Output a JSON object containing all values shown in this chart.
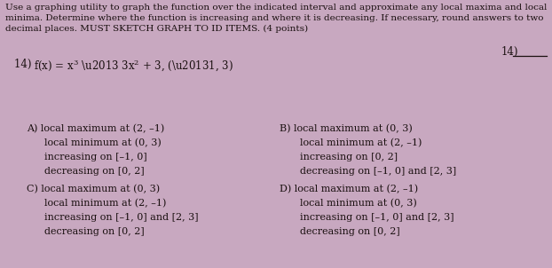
{
  "bg_color": "#c8a8c0",
  "header_text": "Use a graphing utility to graph the function over the indicated interval and approximate any local maxima and local\nminima. Determine where the function is increasing and where it is decreasing. If necessary, round answers to two\ndecimal places. MUST SKETCH GRAPH TO ID ITEMS. (4 points)",
  "question_num_left": "14) ",
  "function_text": "f(x) = x³ – 3x² + 3, (–1, 3)",
  "question_label_right": "14)",
  "answer_A_title": "A) local maximum at (2, –1)",
  "answer_A_line2": "local minimum at (0, 3)",
  "answer_A_line3": "increasing on [–1, 0]",
  "answer_A_line4": "decreasing on [0, 2]",
  "answer_C_title": "C) local maximum at (0, 3)",
  "answer_C_line2": "local minimum at (2, –1)",
  "answer_C_line3": "increasing on [–1, 0] and [2, 3]",
  "answer_C_line4": "decreasing on [0, 2]",
  "answer_B_title": "B) local maximum at (0, 3)",
  "answer_B_line2": "local minimum at (2, –1)",
  "answer_B_line3": "increasing on [0, 2]",
  "answer_B_line4": "decreasing on [–1, 0] and [2, 3]",
  "answer_D_title": "D) local maximum at (2, –1)",
  "answer_D_line2": "local minimum at (0, 3)",
  "answer_D_line3": "increasing on [–1, 0] and [2, 3]",
  "answer_D_line4": "decreasing on [0, 2]",
  "text_color": "#1a1010",
  "font_size_header": 7.5,
  "font_size_question": 8.5,
  "font_size_answers": 8.0
}
